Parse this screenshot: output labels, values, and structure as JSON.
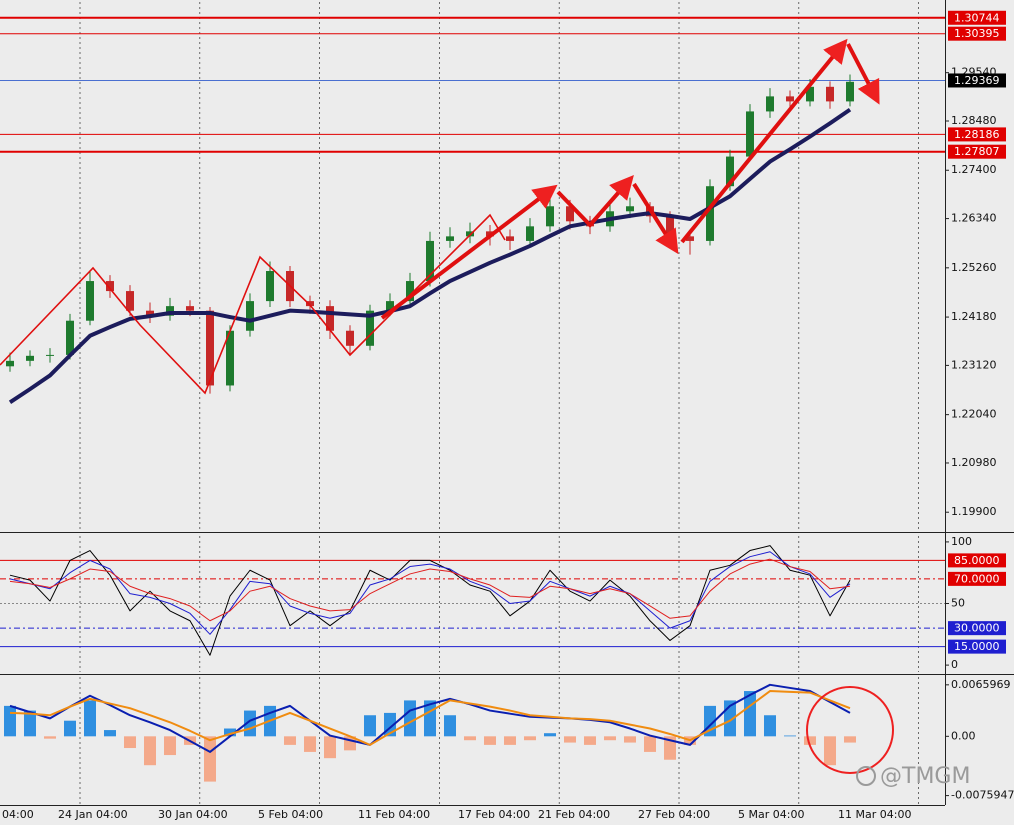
{
  "chart_data": [
    {
      "type": "candlestick",
      "categories": [
        null,
        null,
        "24 Jan 04:00",
        null,
        null,
        null,
        null,
        "30 Jan 04:00",
        null,
        null,
        null,
        null,
        "5 Feb 04:00",
        null,
        null,
        null,
        null,
        "11 Feb 04:00",
        null,
        null,
        null,
        null,
        "17 Feb 04:00",
        null,
        null,
        null,
        "21 Feb 04:00",
        null,
        null,
        null,
        null,
        "27 Feb 04:00",
        null,
        null,
        null,
        null,
        "5 Mar 04:00",
        null,
        null,
        null,
        null,
        "11 Mar 04:00",
        null
      ],
      "x_partial_label": "04:00",
      "open": [
        1.231,
        1.2322,
        1.2333,
        1.2335,
        1.241,
        1.2497,
        1.2475,
        1.2432,
        1.2421,
        1.2442,
        1.2432,
        1.2268,
        1.2388,
        1.2453,
        1.2519,
        1.2453,
        1.2442,
        1.2388,
        1.2355,
        1.2432,
        1.2453,
        1.2497,
        1.2585,
        1.2595,
        1.2606,
        1.2595,
        1.2585,
        1.2617,
        1.2661,
        1.2628,
        1.2617,
        1.265,
        1.2661,
        1.2639,
        1.2595,
        1.2585,
        1.2705,
        1.277,
        1.2869,
        1.2902,
        1.2891,
        1.2923,
        1.2891
      ],
      "high": [
        1.234,
        1.2345,
        1.235,
        1.2425,
        1.252,
        1.251,
        1.2488,
        1.245,
        1.246,
        1.2455,
        1.244,
        1.24,
        1.247,
        1.254,
        1.253,
        1.2465,
        1.2455,
        1.24,
        1.2445,
        1.247,
        1.2515,
        1.2605,
        1.2615,
        1.2625,
        1.262,
        1.261,
        1.2635,
        1.268,
        1.2675,
        1.264,
        1.2665,
        1.268,
        1.267,
        1.265,
        1.261,
        1.272,
        1.2785,
        1.2885,
        1.292,
        1.2915,
        1.294,
        1.2935,
        1.295
      ],
      "low": [
        1.2298,
        1.231,
        1.2318,
        1.2325,
        1.24,
        1.246,
        1.242,
        1.2405,
        1.241,
        1.242,
        1.225,
        1.2255,
        1.2375,
        1.244,
        1.244,
        1.2425,
        1.237,
        1.2335,
        1.2345,
        1.242,
        1.244,
        1.2485,
        1.257,
        1.258,
        1.2575,
        1.2565,
        1.2575,
        1.2605,
        1.261,
        1.26,
        1.2605,
        1.2635,
        1.2625,
        1.258,
        1.2555,
        1.2575,
        1.2695,
        1.276,
        1.2855,
        1.287,
        1.288,
        1.2875,
        1.288
      ],
      "close": [
        1.2322,
        1.2333,
        1.2335,
        1.241,
        1.2497,
        1.2475,
        1.2432,
        1.2421,
        1.2442,
        1.2432,
        1.2268,
        1.2388,
        1.2453,
        1.2519,
        1.2453,
        1.2442,
        1.2388,
        1.2355,
        1.2432,
        1.2453,
        1.2497,
        1.2585,
        1.2595,
        1.2606,
        1.2595,
        1.2585,
        1.2617,
        1.2661,
        1.2628,
        1.2617,
        1.265,
        1.2661,
        1.2639,
        1.2595,
        1.2585,
        1.2705,
        1.277,
        1.2869,
        1.2902,
        1.2891,
        1.2923,
        1.2891,
        1.2934
      ],
      "up_color": "#1e7a2e",
      "down_color": "#c62828",
      "lines": [
        {
          "color": "#1c1c5c",
          "width": 4,
          "values": [
            1.2231,
            1.226,
            1.229,
            1.2334,
            1.2377,
            1.2396,
            1.2414,
            1.242,
            1.2427,
            1.2427,
            1.2427,
            1.2418,
            1.241,
            1.2421,
            1.2432,
            1.243,
            1.2427,
            1.2424,
            1.2421,
            1.2431,
            1.2442,
            1.247,
            1.2497,
            1.2517,
            1.2537,
            1.2555,
            1.2574,
            1.2596,
            1.2617,
            1.2625,
            1.2633,
            1.264,
            1.2646,
            1.264,
            1.2633,
            1.2658,
            1.2683,
            1.2721,
            1.2759,
            1.2786,
            1.2814,
            1.2843,
            1.2873
          ]
        }
      ],
      "ylim": [
        1.1951,
        1.3109
      ],
      "yticks": [
        {
          "value": 1.2954,
          "label": "1.29540"
        },
        {
          "value": 1.2848,
          "label": "1.28480"
        },
        {
          "value": 1.274,
          "label": "1.27400"
        },
        {
          "value": 1.2634,
          "label": "1.26340"
        },
        {
          "value": 1.2526,
          "label": "1.25260"
        },
        {
          "value": 1.2418,
          "label": "1.24180"
        },
        {
          "value": 1.2312,
          "label": "1.23120"
        },
        {
          "value": 1.2204,
          "label": "1.22040"
        },
        {
          "value": 1.2098,
          "label": "1.20980"
        },
        {
          "value": 1.199,
          "label": "1.19900"
        }
      ],
      "levels": [
        {
          "value": 1.30744,
          "color": "#e00000",
          "width": 2,
          "label_color": "#e00000"
        },
        {
          "value": 1.30395,
          "color": "#e00000",
          "width": 1,
          "label_color": "#e00000"
        },
        {
          "value": 1.29369,
          "color": "#4a6fd0",
          "width": 1,
          "label_color": "#000000"
        },
        {
          "value": 1.28186,
          "color": "#e00000",
          "width": 1,
          "label_color": "#e00000"
        },
        {
          "value": 1.27807,
          "color": "#e00000",
          "width": 2,
          "label_color": "#e00000"
        }
      ]
    },
    {
      "type": "line",
      "series": [
        {
          "color": "#000000",
          "values": [
            73,
            69,
            52,
            85,
            93,
            73,
            44,
            60,
            44,
            36,
            8,
            56,
            77,
            69,
            32,
            44,
            32,
            44,
            77,
            69,
            85,
            85,
            77,
            65,
            60,
            40,
            52,
            77,
            60,
            52,
            69,
            56,
            36,
            20,
            32,
            77,
            81,
            93,
            97,
            77,
            73,
            40,
            69
          ]
        },
        {
          "color": "#1f1fd0",
          "values": [
            70,
            66,
            62,
            75,
            85,
            78,
            58,
            55,
            50,
            42,
            25,
            45,
            68,
            66,
            48,
            42,
            38,
            42,
            65,
            70,
            80,
            82,
            78,
            68,
            62,
            50,
            52,
            68,
            62,
            56,
            64,
            58,
            44,
            30,
            36,
            68,
            80,
            88,
            92,
            80,
            74,
            55,
            66
          ]
        },
        {
          "color": "#e02020",
          "values": [
            68,
            66,
            63,
            70,
            78,
            76,
            64,
            58,
            54,
            48,
            36,
            44,
            60,
            64,
            54,
            48,
            44,
            45,
            58,
            66,
            74,
            78,
            76,
            70,
            65,
            56,
            55,
            64,
            62,
            58,
            62,
            58,
            48,
            38,
            40,
            60,
            74,
            82,
            86,
            80,
            76,
            62,
            64
          ]
        }
      ],
      "ylim": [
        -5.6,
        104.8
      ],
      "yticks": [
        0,
        50,
        100
      ],
      "levels": [
        {
          "value": 85,
          "label": "85.0000",
          "color": "#e00000",
          "width": 1,
          "dash": "",
          "label_color": "#e00000"
        },
        {
          "value": 70,
          "label": "70.0000",
          "color": "#e00000",
          "width": 1,
          "dash": "6 3 2 3",
          "label_color": "#e00000"
        },
        {
          "value": 50,
          "color": "#888888",
          "width": 1,
          "dash": "2 2"
        },
        {
          "value": 30,
          "label": "30.0000",
          "color": "#1f1fd0",
          "width": 1,
          "dash": "6 3 2 3",
          "label_color": "#1f1fd0"
        },
        {
          "value": 15,
          "label": "15.0000",
          "color": "#1f1fd0",
          "width": 1,
          "dash": "",
          "label_color": "#1f1fd0"
        }
      ]
    },
    {
      "type": "bar",
      "values": [
        0.0039,
        0.0033,
        -0.0003,
        0.002,
        0.0046,
        0.0008,
        -0.0015,
        -0.0037,
        -0.0024,
        -0.0011,
        -0.0058,
        0.001,
        0.0033,
        0.0039,
        -0.0011,
        -0.002,
        -0.0028,
        -0.0018,
        0.0027,
        0.003,
        0.0046,
        0.0046,
        0.0027,
        -0.0005,
        -0.0011,
        -0.0011,
        -0.0005,
        0.0004,
        -0.0008,
        -0.0011,
        -0.0005,
        -0.0008,
        -0.002,
        -0.003,
        -0.0011,
        0.0039,
        0.0046,
        0.0058,
        0.0027,
        0.0001,
        -0.0011,
        -0.0037,
        -0.0008
      ],
      "up_color": "#2f8fe0",
      "down_color": "#f4a98a",
      "lines": [
        {
          "color": "#0a1fb0",
          "width": 2,
          "values": [
            0.0039,
            0.0031,
            0.0023,
            0.0038,
            0.0052,
            0.004,
            0.0027,
            0.0018,
            0.0008,
            -0.0006,
            -0.002,
            0,
            0.002,
            0.003,
            0.0039,
            0.002,
            0.0001,
            -0.0005,
            -0.0011,
            0.0011,
            0.0033,
            0.0041,
            0.0048,
            0.0041,
            0.0033,
            0.0029,
            0.0025,
            0.0024,
            0.0023,
            0.0021,
            0.0018,
            0.001,
            0.0001,
            -0.0005,
            -0.0011,
            0.0014,
            0.0039,
            0.0053,
            0.0066,
            0.0062,
            0.0058,
            0.0044,
            0.003
          ]
        },
        {
          "color": "#f08c10",
          "width": 2,
          "values": [
            0.003,
            0.0029,
            0.0027,
            0.0038,
            0.0048,
            0.0042,
            0.0036,
            0.0027,
            0.0018,
            0.0007,
            -0.0005,
            0.0003,
            0.001,
            0.002,
            0.003,
            0.002,
            0.001,
            0,
            -0.0011,
            0.0004,
            0.0018,
            0.0032,
            0.0046,
            0.0042,
            0.0038,
            0.0033,
            0.0027,
            0.0025,
            0.0023,
            0.0022,
            0.002,
            0.0015,
            0.001,
            0.0003,
            -0.0005,
            0.0008,
            0.002,
            0.0039,
            0.0058,
            0.0057,
            0.0056,
            0.0046,
            0.0036
          ]
        }
      ],
      "ylim": [
        -0.0088,
        0.0076
      ],
      "yticks": [
        0.0065969,
        {
          "value": 0,
          "label": "0.00"
        },
        -0.0075947
      ]
    }
  ],
  "watermark": "@TMGM"
}
